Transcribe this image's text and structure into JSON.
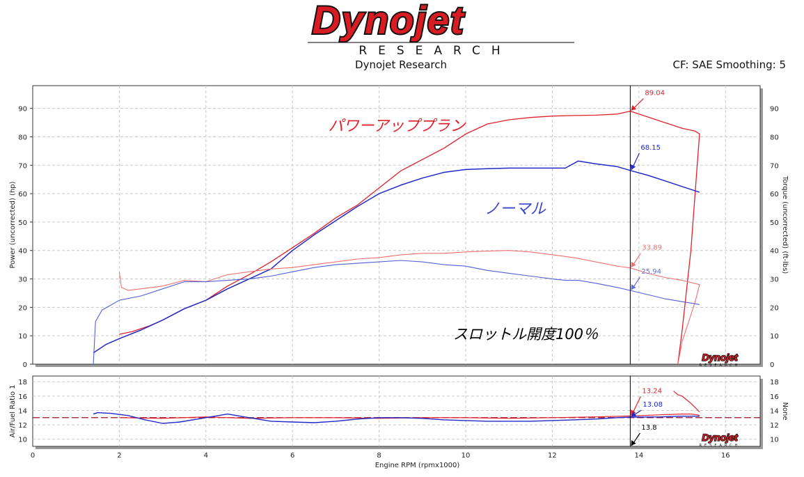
{
  "header": {
    "logo_text": "Dynojet",
    "logo_sub": "RESEARCH",
    "company": "Dynojet Research",
    "cf_text": "CF: SAE Smoothing: 5"
  },
  "colors": {
    "powerup": "#e0202a",
    "normal": "#2028c8",
    "afr_ref": "#a01020",
    "cursor": "#000000",
    "grid": "#c8c8c8"
  },
  "cursor": {
    "x": 13.8
  },
  "chart_data": [
    {
      "type": "line",
      "title": "",
      "xlabel": "",
      "ylabel": "Power (uncorrected) (hp)",
      "y2label": "Torque (uncorrected) (ft-lbs)",
      "xlim": [
        0,
        16.8
      ],
      "ylim": [
        0,
        98
      ],
      "yticks": [
        0,
        10,
        20,
        30,
        40,
        50,
        60,
        70,
        80,
        90
      ],
      "grid": true,
      "annotations": [
        {
          "text": "パワーアッププラン",
          "color": "#e0202a"
        },
        {
          "text": "ノーマル",
          "color": "#3a48c8"
        },
        {
          "text": "スロットル開度100％",
          "color": "#000000"
        }
      ],
      "cursor_values": [
        {
          "series": "power-powerup",
          "value": "89.04",
          "x": 13.8,
          "y": 89.04,
          "color": "#e0202a"
        },
        {
          "series": "power-normal",
          "value": "68.15",
          "x": 13.8,
          "y": 68.15,
          "color": "#2028c8"
        },
        {
          "series": "torque-powerup",
          "value": "33.89",
          "x": 13.8,
          "y": 33.89,
          "color": "#f07070"
        },
        {
          "series": "torque-normal",
          "value": "25.94",
          "x": 13.8,
          "y": 25.94,
          "color": "#6070e0"
        }
      ],
      "series": [
        {
          "key": "power-powerup",
          "color": "#e0202a",
          "width": 1.3,
          "x": [
            2.0,
            2.3,
            2.7,
            3.0,
            3.5,
            4.0,
            4.5,
            5.0,
            5.5,
            6.0,
            6.5,
            7.0,
            7.5,
            8.0,
            8.5,
            9.0,
            9.5,
            10.0,
            10.5,
            11.0,
            11.5,
            12.0,
            12.5,
            13.0,
            13.5,
            13.8,
            14.2,
            14.6,
            15.0,
            15.3,
            15.4,
            15.2,
            15.0,
            14.9
          ],
          "y": [
            10.5,
            11.5,
            13.5,
            15.5,
            19.5,
            22.5,
            27.5,
            31.5,
            36.0,
            41.0,
            46.0,
            51.5,
            56.0,
            62.0,
            68.0,
            72.0,
            76.0,
            81.0,
            84.5,
            86.0,
            86.8,
            87.3,
            87.5,
            87.6,
            88.0,
            89.04,
            87.0,
            85.0,
            83.0,
            82.0,
            81.0,
            40.0,
            12.0,
            0
          ]
        },
        {
          "key": "power-normal",
          "color": "#2028c8",
          "width": 1.5,
          "x": [
            1.4,
            1.7,
            2.0,
            2.5,
            3.0,
            3.5,
            4.0,
            4.5,
            5.0,
            5.5,
            6.0,
            6.5,
            7.0,
            7.5,
            8.0,
            8.5,
            9.0,
            9.5,
            10.0,
            10.5,
            11.0,
            11.5,
            12.0,
            12.3,
            12.6,
            13.0,
            13.5,
            13.8,
            14.2,
            14.6,
            15.0,
            15.4
          ],
          "y": [
            4.0,
            7.0,
            9.0,
            12.0,
            15.5,
            19.5,
            22.5,
            26.5,
            30.0,
            33.5,
            40.0,
            45.5,
            50.5,
            55.5,
            60.0,
            63.0,
            65.5,
            67.5,
            68.5,
            68.8,
            69.0,
            69.0,
            69.0,
            69.0,
            71.5,
            70.5,
            69.5,
            68.15,
            66.5,
            64.5,
            62.5,
            60.5
          ]
        },
        {
          "key": "torque-powerup",
          "color": "#f07070",
          "width": 1.1,
          "x": [
            2.0,
            2.05,
            2.2,
            2.5,
            3.0,
            3.5,
            4.0,
            4.5,
            5.0,
            5.5,
            6.0,
            6.5,
            7.0,
            7.5,
            8.0,
            8.5,
            9.0,
            9.5,
            10.0,
            10.5,
            11.0,
            11.5,
            12.0,
            12.5,
            13.0,
            13.5,
            13.8,
            14.2,
            14.6,
            15.0,
            15.4,
            15.3,
            15.0,
            14.9
          ],
          "y": [
            32.5,
            27.0,
            26.0,
            26.5,
            27.5,
            29.5,
            29.0,
            31.5,
            32.5,
            33.5,
            34.0,
            35.0,
            36.0,
            37.0,
            37.5,
            38.5,
            39.0,
            39.0,
            39.5,
            39.8,
            40.0,
            39.5,
            38.5,
            37.5,
            36.0,
            34.5,
            33.89,
            32.0,
            30.5,
            29.5,
            28.0,
            22.0,
            8.0,
            0
          ]
        },
        {
          "key": "torque-normal",
          "color": "#5060d8",
          "width": 1.1,
          "x": [
            1.4,
            1.45,
            1.6,
            2.0,
            2.5,
            3.0,
            3.5,
            4.0,
            4.5,
            5.0,
            5.5,
            6.0,
            6.5,
            7.0,
            7.5,
            8.0,
            8.5,
            9.0,
            9.5,
            10.0,
            10.5,
            11.0,
            11.5,
            12.0,
            12.3,
            12.6,
            13.0,
            13.5,
            13.8,
            14.2,
            14.6,
            15.0,
            15.4
          ],
          "y": [
            0,
            15.0,
            19.0,
            22.5,
            24.0,
            26.5,
            29.0,
            29.0,
            29.5,
            30.0,
            31.0,
            32.5,
            34.0,
            35.0,
            35.5,
            36.0,
            36.5,
            36.0,
            35.0,
            34.5,
            33.0,
            32.0,
            31.0,
            30.0,
            29.5,
            29.5,
            28.5,
            27.0,
            25.94,
            24.5,
            23.0,
            22.0,
            21.0
          ]
        }
      ]
    },
    {
      "type": "line",
      "title": "",
      "xlabel": "Engine RPM (rpmx1000)",
      "ylabel": "Air/Fuel Ratio 1",
      "y2label": "None",
      "xlim": [
        0,
        16.8
      ],
      "ylim": [
        9,
        18.8
      ],
      "xticks": [
        0,
        2,
        4,
        6,
        8,
        10,
        12,
        14,
        16
      ],
      "yticks": [
        10,
        12,
        14,
        16,
        18
      ],
      "reference_line": 13.0,
      "grid": true,
      "cursor_values": [
        {
          "series": "afr-powerup",
          "value": "13.24",
          "x": 13.8,
          "y": 13.24,
          "color": "#e0202a"
        },
        {
          "series": "afr-normal",
          "value": "13.08",
          "x": 13.8,
          "y": 13.08,
          "color": "#2028c8"
        },
        {
          "series": "rpm",
          "value": "13.8",
          "x": 13.8,
          "y": 9.0,
          "color": "#000000"
        }
      ],
      "series": [
        {
          "key": "afr-powerup",
          "color": "#e0202a",
          "width": 1.2,
          "x": [
            2.0,
            3.0,
            4.0,
            5.0,
            6.0,
            7.0,
            8.0,
            9.0,
            10.0,
            11.0,
            12.0,
            13.0,
            13.8,
            14.5,
            15.0,
            15.2,
            15.35,
            15.4
          ],
          "y": [
            13.0,
            12.9,
            13.1,
            12.9,
            13.0,
            13.0,
            12.9,
            13.0,
            13.0,
            12.9,
            13.0,
            13.1,
            13.24,
            13.4,
            13.5,
            13.5,
            13.4,
            13.3
          ]
        },
        {
          "key": "afr-spike",
          "color": "#e0202a",
          "width": 1.2,
          "x": [
            14.8,
            14.9,
            15.0,
            15.2,
            15.4
          ],
          "y": [
            16.7,
            16.2,
            16.0,
            15.0,
            13.8
          ]
        },
        {
          "key": "afr-normal",
          "color": "#2028c8",
          "width": 1.4,
          "x": [
            1.4,
            1.5,
            1.8,
            2.2,
            2.6,
            3.0,
            3.4,
            4.0,
            4.5,
            5.0,
            5.5,
            6.0,
            6.5,
            7.0,
            7.5,
            8.0,
            8.5,
            9.0,
            9.5,
            10.0,
            10.5,
            11.0,
            11.5,
            12.0,
            12.5,
            13.0,
            13.5,
            13.8,
            14.5,
            15.0,
            15.4
          ],
          "y": [
            13.5,
            13.7,
            13.6,
            13.3,
            12.7,
            12.2,
            12.4,
            13.0,
            13.5,
            13.0,
            12.5,
            12.4,
            12.3,
            12.5,
            12.8,
            13.0,
            13.0,
            12.9,
            12.7,
            12.6,
            12.5,
            12.5,
            12.5,
            12.6,
            12.7,
            12.8,
            13.0,
            13.08,
            13.1,
            13.2,
            13.2
          ]
        }
      ]
    }
  ]
}
